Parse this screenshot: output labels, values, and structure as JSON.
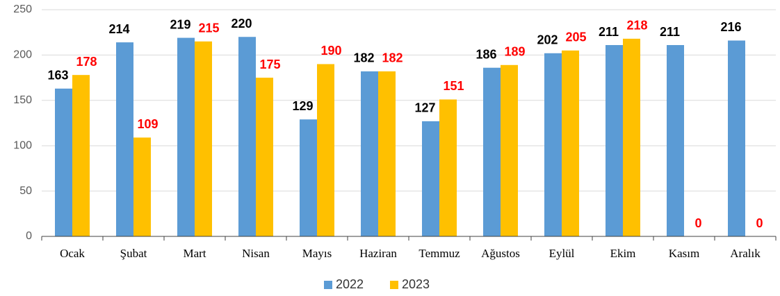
{
  "chart_data": {
    "type": "bar",
    "categories": [
      "Ocak",
      "Şubat",
      "Mart",
      "Nisan",
      "Mayıs",
      "Haziran",
      "Temmuz",
      "Ağustos",
      "Eylül",
      "Ekim",
      "Kasım",
      "Aralık"
    ],
    "series": [
      {
        "name": "2022",
        "color": "#5b9bd5",
        "label_color": "#000000",
        "values": [
          163,
          214,
          219,
          220,
          129,
          182,
          127,
          186,
          202,
          211,
          211,
          216
        ]
      },
      {
        "name": "2023",
        "color": "#ffc000",
        "label_color": "#ff0000",
        "values": [
          178,
          109,
          215,
          175,
          190,
          182,
          151,
          189,
          205,
          218,
          0,
          0
        ]
      }
    ],
    "ylim": [
      0,
      250
    ],
    "yticks": [
      0,
      50,
      100,
      150,
      200,
      250
    ],
    "grid": true,
    "legend": "bottom"
  }
}
